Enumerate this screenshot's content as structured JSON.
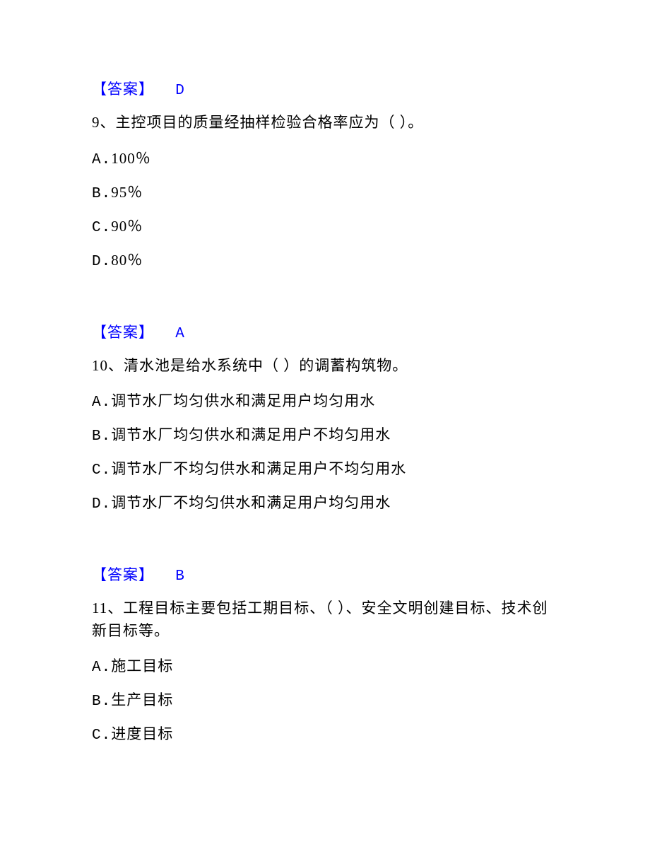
{
  "text_color": "#000000",
  "answer_color": "#0000ff",
  "background_color": "#ffffff",
  "font_size": 21,
  "blocks": [
    {
      "answer_label": "【答案】",
      "answer_value": "D",
      "question_number": "9、",
      "question_text": "主控项目的质量经抽样检验合格率应为（ ）。",
      "options": [
        {
          "prefix": "A.",
          "text": "100％"
        },
        {
          "prefix": "B.",
          "text": "95％"
        },
        {
          "prefix": "C.",
          "text": "90％"
        },
        {
          "prefix": "D.",
          "text": "80％"
        }
      ]
    },
    {
      "answer_label": "【答案】",
      "answer_value": "A",
      "question_number": "10、",
      "question_text": "清水池是给水系统中（ ）的调蓄构筑物。",
      "options": [
        {
          "prefix": "A.",
          "text": "调节水厂均匀供水和满足用户均匀用水"
        },
        {
          "prefix": "B.",
          "text": "调节水厂均匀供水和满足用户不均匀用水"
        },
        {
          "prefix": "C.",
          "text": "调节水厂不均匀供水和满足用户不均匀用水"
        },
        {
          "prefix": "D.",
          "text": "调节水厂不均匀供水和满足用户均匀用水"
        }
      ]
    },
    {
      "answer_label": "【答案】",
      "answer_value": "B",
      "question_number": "11、",
      "question_text": "工程目标主要包括工期目标、（ ）、安全文明创建目标、技术创新目标等。",
      "options": [
        {
          "prefix": "A.",
          "text": "施工目标"
        },
        {
          "prefix": "B.",
          "text": "生产目标"
        },
        {
          "prefix": "C.",
          "text": "进度目标"
        }
      ]
    }
  ]
}
